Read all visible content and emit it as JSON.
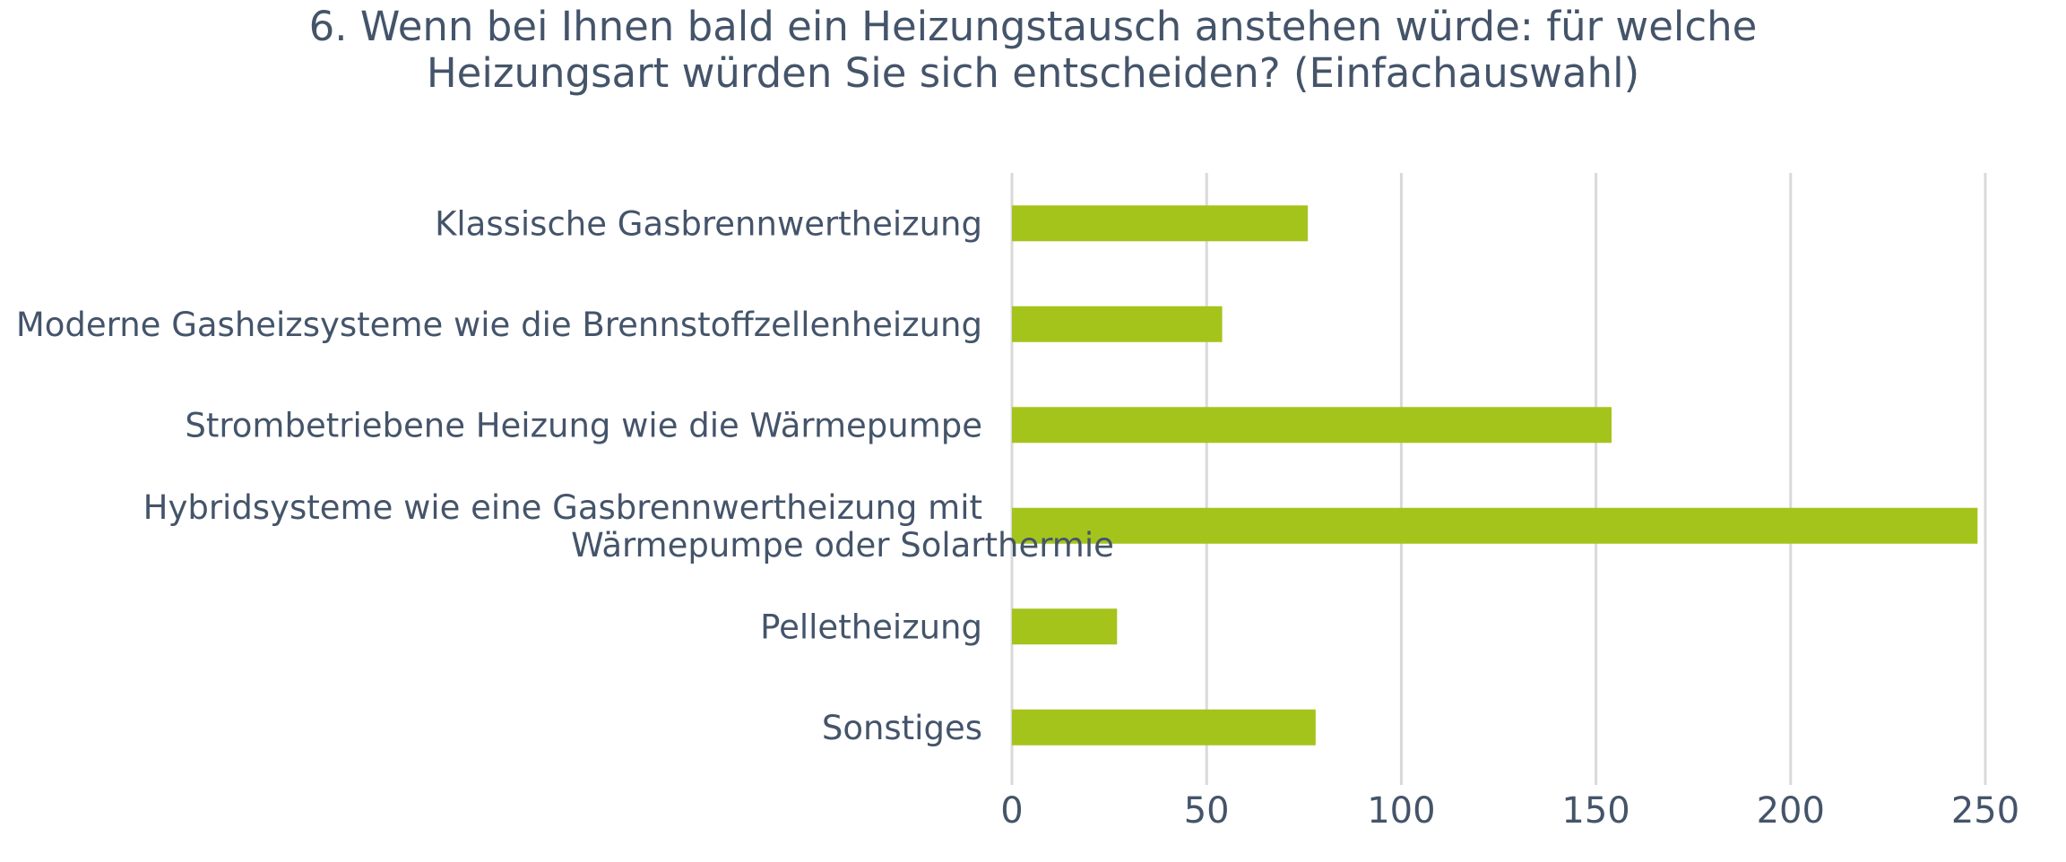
{
  "chart_data": {
    "type": "bar",
    "orientation": "horizontal",
    "title": "6. Wenn bei Ihnen bald ein Heizungstausch anstehen würde: für welche Heizungsart würden Sie sich entscheiden? (Einfachauswahl)",
    "title_lines": [
      "6. Wenn bei Ihnen bald ein Heizungstausch anstehen würde: für welche",
      "Heizungsart würden Sie sich entscheiden? (Einfachauswahl)"
    ],
    "categories": [
      [
        "Klassische Gasbrennwertheizung"
      ],
      [
        "Moderne Gasheizsysteme wie die Brennstoffzellenheizung"
      ],
      [
        "Strombetriebene Heizung wie die Wärmepumpe"
      ],
      [
        "Hybridsysteme wie eine Gasbrennwertheizung mit",
        "Wärmepumpe oder Solarthermie"
      ],
      [
        "Pelletheizung"
      ],
      [
        "Sonstiges"
      ]
    ],
    "values": [
      76,
      54,
      154,
      248,
      27,
      78
    ],
    "xlim": [
      0,
      250
    ],
    "xticks": [
      "0",
      "50",
      "100",
      "150",
      "200",
      "250"
    ],
    "grid": true,
    "legend": "none",
    "bar_color": "#a4c41c",
    "grid_color": "#d9d9d9",
    "text_color": "#44546a"
  }
}
